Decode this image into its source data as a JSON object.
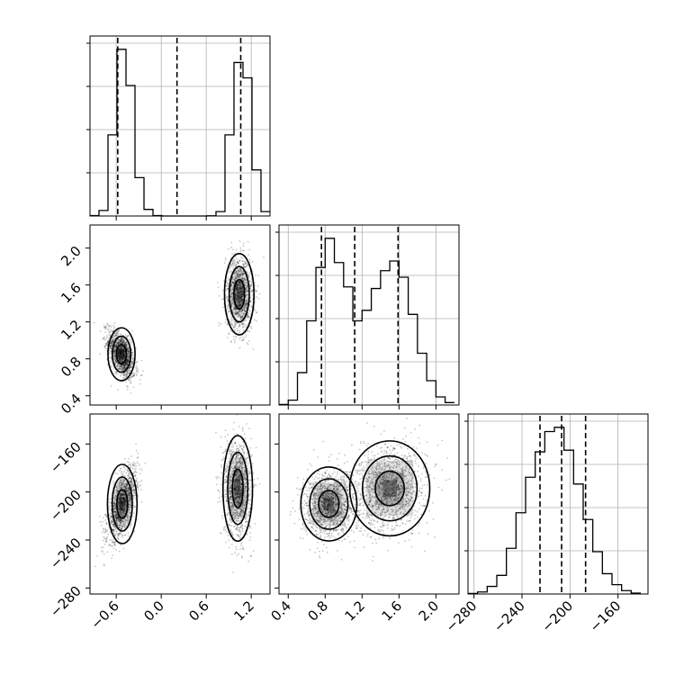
{
  "chart_data": {
    "type": "corner",
    "title": "",
    "variables": [
      {
        "range": [
          -0.95,
          1.45
        ],
        "ticks": [
          -0.6,
          0.0,
          0.6,
          1.2
        ],
        "tick_labels": [
          "−0.6",
          "0.0",
          "0.6",
          "1.2"
        ],
        "quantiles": [
          -0.58,
          0.21,
          1.06
        ]
      },
      {
        "range": [
          0.3,
          2.25
        ],
        "ticks": [
          0.4,
          0.8,
          1.2,
          1.6,
          2.0
        ],
        "tick_labels": [
          "0.4",
          "0.8",
          "1.2",
          "1.6",
          "2.0"
        ],
        "quantiles": [
          0.76,
          1.12,
          1.59
        ]
      },
      {
        "range": [
          -285,
          -135
        ],
        "ticks": [
          -280,
          -240,
          -200,
          -160
        ],
        "tick_labels": [
          "−280",
          "−240",
          "−200",
          "−160"
        ],
        "quantiles": [
          -225,
          -207,
          -187
        ]
      }
    ],
    "histograms": [
      {
        "edges": [
          -0.95,
          -0.83,
          -0.71,
          -0.59,
          -0.47,
          -0.35,
          -0.23,
          -0.11,
          0.01,
          0.13,
          0.25,
          0.37,
          0.49,
          0.61,
          0.73,
          0.85,
          0.97,
          1.09,
          1.21,
          1.33,
          1.45
        ],
        "counts": [
          2,
          25,
          370,
          760,
          595,
          175,
          30,
          2,
          0,
          0,
          0,
          0,
          0,
          1,
          20,
          370,
          700,
          630,
          210,
          20
        ]
      },
      {
        "edges": [
          0.3,
          0.4,
          0.5,
          0.6,
          0.7,
          0.8,
          0.9,
          1.0,
          1.1,
          1.2,
          1.3,
          1.4,
          1.5,
          1.6,
          1.7,
          1.8,
          1.9,
          2.0,
          2.1,
          2.2
        ],
        "counts": [
          3,
          30,
          200,
          520,
          850,
          1030,
          880,
          730,
          520,
          585,
          720,
          830,
          890,
          790,
          560,
          320,
          150,
          50,
          15
        ]
      },
      {
        "edges": [
          -285,
          -277,
          -269,
          -261,
          -253,
          -245,
          -237,
          -229,
          -221,
          -213,
          -205,
          -197,
          -189,
          -181,
          -173,
          -165,
          -157,
          -149,
          -141
        ],
        "counts": [
          3,
          12,
          45,
          110,
          270,
          480,
          690,
          840,
          960,
          985,
          850,
          650,
          440,
          250,
          120,
          55,
          20,
          5
        ]
      }
    ],
    "joint_2d": [
      {
        "x_var": 0,
        "y_var": 1,
        "modes": [
          {
            "center": [
              -0.53,
              0.85
            ],
            "std": [
              0.09,
              0.13
            ],
            "rho": -0.55,
            "weight": 0.5
          },
          {
            "center": [
              1.04,
              1.5
            ],
            "std": [
              0.09,
              0.2
            ],
            "rho": -0.05,
            "weight": 0.5
          }
        ]
      },
      {
        "x_var": 0,
        "y_var": 2,
        "modes": [
          {
            "center": [
              -0.52,
              -210
            ],
            "std": [
              0.1,
              15
            ],
            "rho": 0.65,
            "weight": 0.5
          },
          {
            "center": [
              1.02,
              -197
            ],
            "std": [
              0.09,
              20
            ],
            "rho": -0.05,
            "weight": 0.5
          }
        ]
      },
      {
        "x_var": 1,
        "y_var": 2,
        "modes": [
          {
            "center": [
              0.84,
              -210
            ],
            "std": [
              0.14,
              14
            ],
            "rho": 0.1,
            "weight": 0.5
          },
          {
            "center": [
              1.5,
              -197
            ],
            "std": [
              0.2,
              18
            ],
            "rho": 0.1,
            "weight": 0.5
          }
        ]
      }
    ],
    "grid": true,
    "legend": "none"
  }
}
